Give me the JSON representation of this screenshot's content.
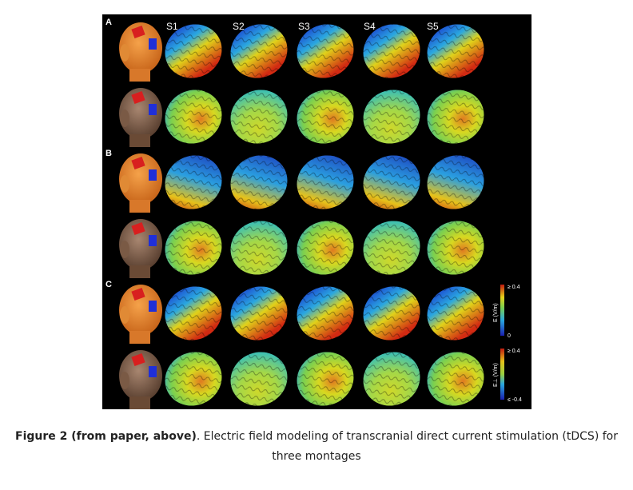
{
  "figure": {
    "panels": [
      "A",
      "B",
      "C"
    ],
    "subjects": [
      "S1",
      "S2",
      "S3",
      "S4",
      "S5"
    ],
    "rows": [
      {
        "panel": "A",
        "map": "magnitude",
        "head": "skin"
      },
      {
        "panel": "A",
        "map": "normal",
        "head": "brain"
      },
      {
        "panel": "B",
        "map": "magnitude",
        "head": "skin"
      },
      {
        "panel": "B",
        "map": "normal",
        "head": "brain"
      },
      {
        "panel": "C",
        "map": "magnitude",
        "head": "skin"
      },
      {
        "panel": "C",
        "map": "normal",
        "head": "brain"
      }
    ],
    "colorbar_magnitude": {
      "max": "≥ 0.4",
      "min": "0",
      "label": "E (V/m)"
    },
    "colorbar_normal": {
      "max": "≥ 0.4",
      "min": "≤ -0.4",
      "label": "E⊥ (V/m)"
    },
    "colors": {
      "background": "#000000",
      "anode": "#d81f1f",
      "cathode": "#1f2fd8",
      "head_skin": "#e8852a",
      "brain": "#8a6a55"
    }
  },
  "caption": {
    "bold": "Figure 2 (from paper, above)",
    "text": ". Electric field modeling of transcranial direct current stimulation (tDCS) for",
    "line2": "three montages"
  }
}
